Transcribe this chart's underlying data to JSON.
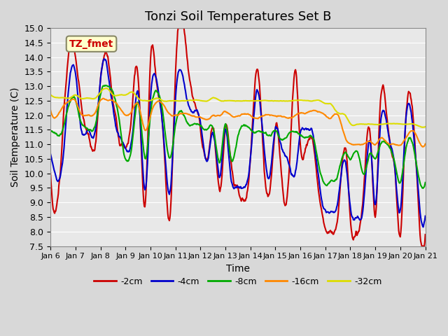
{
  "title": "Tonzi Soil Temperatures Set B",
  "xlabel": "Time",
  "ylabel": "Soil Temperature (C)",
  "ylim": [
    7.5,
    15.0
  ],
  "yticks": [
    7.5,
    8.0,
    8.5,
    9.0,
    9.5,
    10.0,
    10.5,
    11.0,
    11.5,
    12.0,
    12.5,
    13.0,
    13.5,
    14.0,
    14.5,
    15.0
  ],
  "xtick_labels": [
    "Jan 6",
    "Jan 7",
    "Jan 8",
    "Jan 9",
    "Jan 10",
    "Jan 11",
    "Jan 12",
    "Jan 13",
    "Jan 14",
    "Jan 15",
    "Jan 16",
    "Jan 17",
    "Jan 18",
    "Jan 19",
    "Jan 20",
    "Jan 21"
  ],
  "colors": {
    "-2cm": "#cc0000",
    "-4cm": "#0000cc",
    "-8cm": "#00aa00",
    "-16cm": "#ff8800",
    "-32cm": "#dddd00"
  },
  "line_widths": {
    "-2cm": 1.5,
    "-4cm": 1.5,
    "-8cm": 1.5,
    "-16cm": 1.5,
    "-32cm": 1.5
  },
  "annotation_text": "TZ_fmet",
  "annotation_color": "#cc0000",
  "annotation_bg": "#ffffcc",
  "annotation_border": "#888866",
  "background_color": "#e8e8e8",
  "plot_bg_color": "#e8e8e8",
  "grid_color": "#ffffff",
  "title_fontsize": 13,
  "label_fontsize": 10
}
